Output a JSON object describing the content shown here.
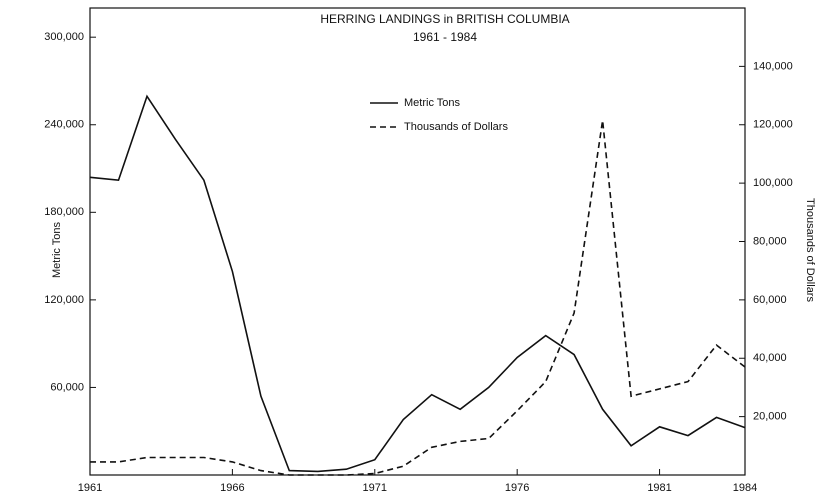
{
  "chart_data": {
    "type": "line",
    "title": "HERRING LANDINGS in BRITISH COLUMBIA",
    "subtitle": "1961 - 1984",
    "ylabel": "Metric Tons",
    "y2label": "Thousands of Dollars",
    "x": [
      1961,
      1962,
      1963,
      1964,
      1965,
      1966,
      1967,
      1968,
      1969,
      1970,
      1971,
      1972,
      1973,
      1974,
      1975,
      1976,
      1977,
      1978,
      1979,
      1980,
      1981,
      1982,
      1983,
      1984
    ],
    "series": [
      {
        "name": "Metric Tons",
        "color": "#111111",
        "dashed": false,
        "values": [
          204000,
          202000,
          259500,
          230000,
          202000,
          139500,
          54000,
          3000,
          2500,
          4000,
          10500,
          38000,
          55000,
          45000,
          60000,
          80500,
          95500,
          82500,
          45000,
          20000,
          33000,
          27000,
          39500,
          32500
        ]
      },
      {
        "name": "Thousands of Dollars",
        "color": "#111111",
        "dashed": true,
        "axis": "y2",
        "values": [
          4500,
          4500,
          6000,
          6000,
          6000,
          4500,
          1500,
          0,
          0,
          0,
          500,
          3000,
          9500,
          11500,
          12500,
          22000,
          32000,
          55500,
          121500,
          27000,
          29500,
          32000,
          44500,
          37000
        ]
      }
    ],
    "xlim": [
      1961,
      1984
    ],
    "xticks": [
      1961,
      1966,
      1971,
      1976,
      1981,
      1984
    ],
    "ylim": [
      0,
      320000
    ],
    "yticks": [
      {
        "value": 60000,
        "label": "60,000"
      },
      {
        "value": 120000,
        "label": "120,000"
      },
      {
        "value": 180000,
        "label": "180,000"
      },
      {
        "value": 240000,
        "label": "240,000"
      },
      {
        "value": 300000,
        "label": "300,000"
      }
    ],
    "y2lim": [
      0,
      160000
    ],
    "y2ticks": [
      {
        "value": 20000,
        "label": "20,000"
      },
      {
        "value": 40000,
        "label": "40,000"
      },
      {
        "value": 60000,
        "label": "60,000"
      },
      {
        "value": 80000,
        "label": "80,000"
      },
      {
        "value": 100000,
        "label": "100,000"
      },
      {
        "value": 120000,
        "label": "120,000"
      },
      {
        "value": 140000,
        "label": "140,000"
      }
    ],
    "grid": false
  }
}
